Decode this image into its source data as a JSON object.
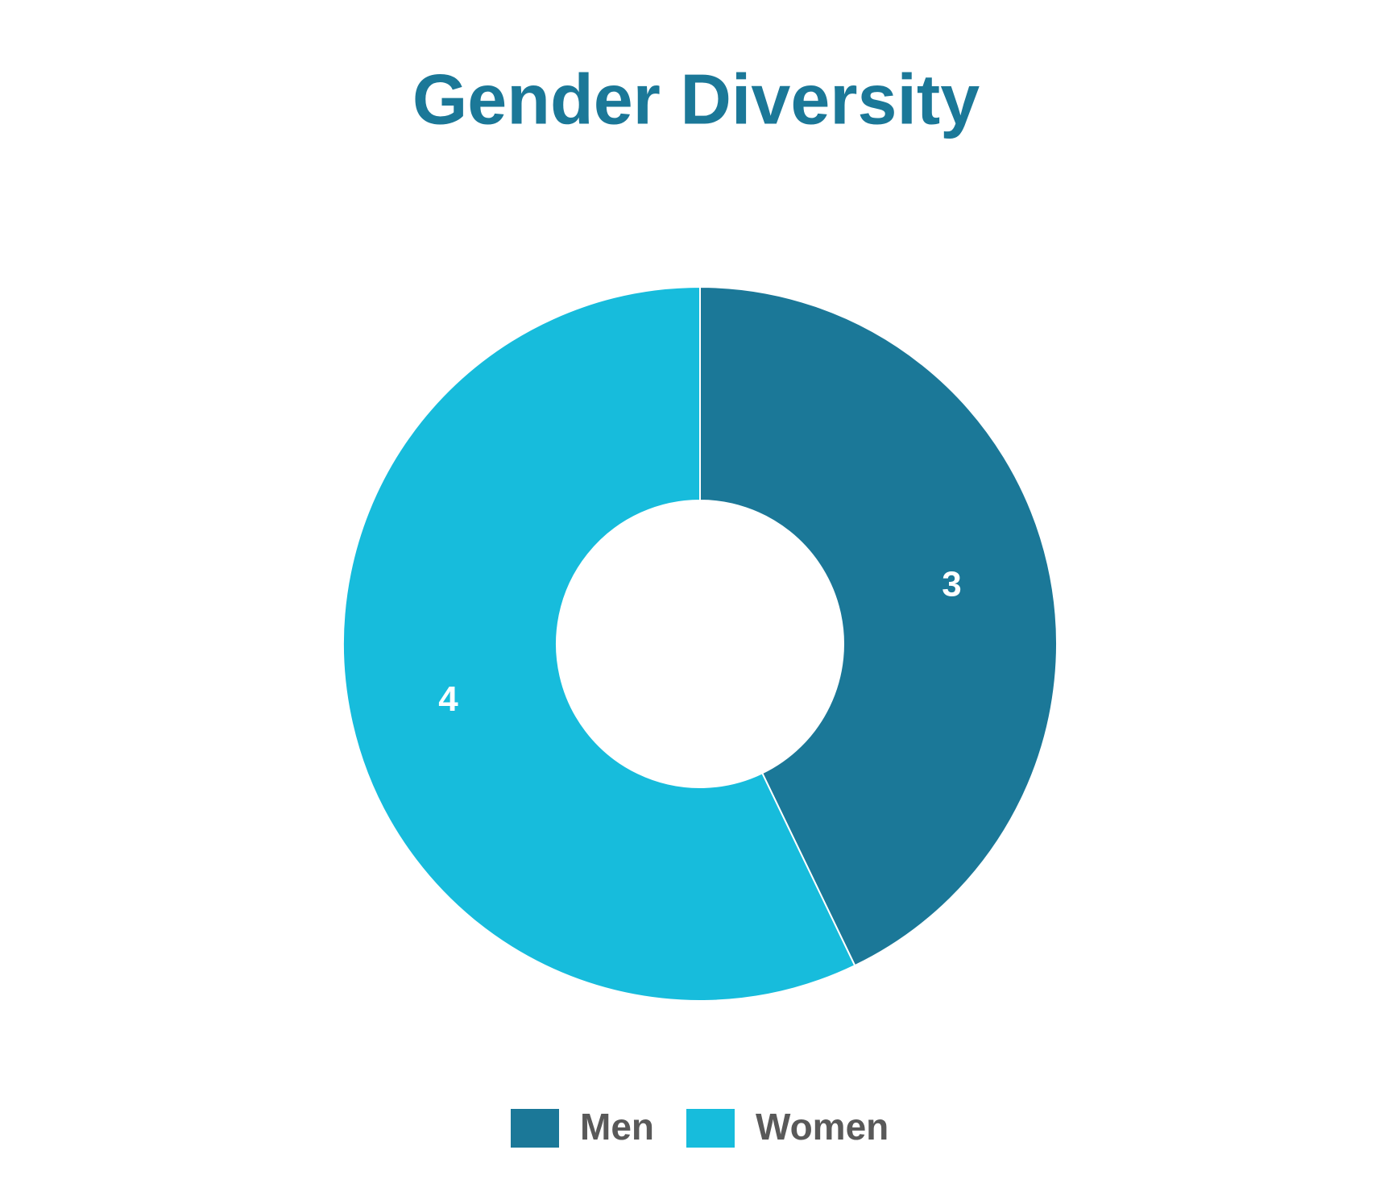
{
  "chart_data": {
    "type": "doughnut",
    "title": "Gender Diversity",
    "categories": [
      "Men",
      "Women"
    ],
    "values": [
      3,
      4
    ],
    "colors": [
      "#1b7898",
      "#17bcdc"
    ],
    "legend": "bottom"
  }
}
